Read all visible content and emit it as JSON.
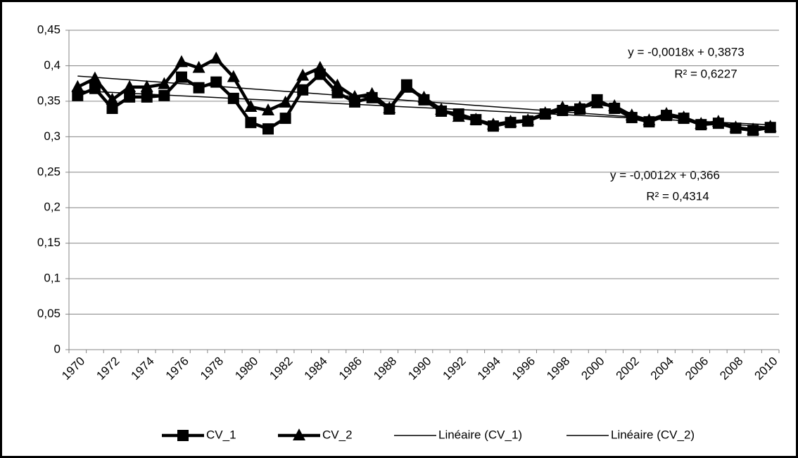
{
  "chart_data": {
    "type": "line",
    "categories": [
      "1970",
      null,
      "1972",
      null,
      "1974",
      null,
      "1976",
      null,
      "1978",
      null,
      "1980",
      null,
      "1982",
      null,
      "1984",
      null,
      "1986",
      null,
      "1988",
      null,
      "1990",
      null,
      "1992",
      null,
      "1994",
      null,
      "1996",
      null,
      "1998",
      null,
      "2000",
      null,
      "2002",
      null,
      "2004",
      null,
      "2006",
      null,
      "2008",
      null,
      "2010"
    ],
    "series": [
      {
        "name": "CV_1",
        "color": "#000000",
        "marker": "square",
        "values": [
          0.358,
          0.368,
          0.34,
          0.356,
          0.356,
          0.358,
          0.384,
          0.369,
          0.377,
          0.354,
          0.32,
          0.311,
          0.326,
          0.366,
          0.388,
          0.362,
          0.349,
          0.355,
          0.339,
          0.373,
          0.352,
          0.336,
          0.332,
          0.324,
          0.315,
          0.32,
          0.322,
          0.332,
          0.337,
          0.339,
          0.352,
          0.34,
          0.327,
          0.321,
          0.33,
          0.326,
          0.317,
          0.319,
          0.312,
          0.309,
          0.313
        ]
      },
      {
        "name": "CV_2",
        "color": "#000000",
        "marker": "triangle",
        "values": [
          0.37,
          0.382,
          0.352,
          0.37,
          0.37,
          0.374,
          0.405,
          0.397,
          0.41,
          0.384,
          0.342,
          0.337,
          0.348,
          0.386,
          0.397,
          0.372,
          0.356,
          0.36,
          0.34,
          0.369,
          0.355,
          0.338,
          0.328,
          0.324,
          0.317,
          0.321,
          0.323,
          0.333,
          0.341,
          0.341,
          0.347,
          0.343,
          0.33,
          0.323,
          0.332,
          0.327,
          0.318,
          0.321,
          0.313,
          0.31,
          0.314
        ]
      },
      {
        "name": "Linéaire (CV_1)",
        "color": "#000000",
        "marker": "none",
        "values": [
          0.3855,
          0.3837,
          0.3819,
          0.3801,
          0.3783,
          0.3765,
          0.3747,
          0.3729,
          0.3711,
          0.3693,
          0.3675,
          0.3657,
          0.3639,
          0.3621,
          0.3603,
          0.3585,
          0.3567,
          0.3549,
          0.3531,
          0.3513,
          0.3495,
          0.3477,
          0.3459,
          0.3441,
          0.3423,
          0.3405,
          0.3387,
          0.3369,
          0.3351,
          0.3333,
          0.3315,
          0.3297,
          0.3279,
          0.3261,
          0.3243,
          0.3225,
          0.3207,
          0.3189,
          0.3171,
          0.3153,
          0.3135
        ]
      },
      {
        "name": "Linéaire (CV_2)",
        "color": "#000000",
        "marker": "none",
        "values": [
          0.3648,
          0.3636,
          0.3624,
          0.3612,
          0.36,
          0.3588,
          0.3576,
          0.3564,
          0.3552,
          0.354,
          0.3528,
          0.3516,
          0.3504,
          0.3492,
          0.348,
          0.3468,
          0.3456,
          0.3444,
          0.3432,
          0.342,
          0.3408,
          0.3396,
          0.3384,
          0.3372,
          0.336,
          0.3348,
          0.3336,
          0.3324,
          0.3312,
          0.33,
          0.3288,
          0.3276,
          0.3264,
          0.3252,
          0.324,
          0.3228,
          0.3216,
          0.3204,
          0.3192,
          0.318,
          0.3168
        ]
      }
    ],
    "annotations": [
      "y = -0,0018x + 0,3873",
      "R² = 0,6227",
      "y = -0,0012x + 0,366",
      "R² = 0,4314"
    ],
    "ylim": [
      0,
      0.45
    ],
    "yticks": [
      0,
      {
        "value": 0.05,
        "label": "0,05"
      },
      {
        "value": 0.1,
        "label": "0,1"
      },
      {
        "value": 0.15,
        "label": "0,15"
      },
      {
        "value": 0.2,
        "label": "0,2"
      },
      {
        "value": 0.25,
        "label": "0,25"
      },
      {
        "value": 0.3,
        "label": "0,3"
      },
      {
        "value": 0.35,
        "label": "0,35"
      },
      {
        "value": 0.4,
        "label": "0,4"
      },
      {
        "value": 0.45,
        "label": "0,45"
      }
    ],
    "grid": true,
    "legend": "bottom"
  }
}
